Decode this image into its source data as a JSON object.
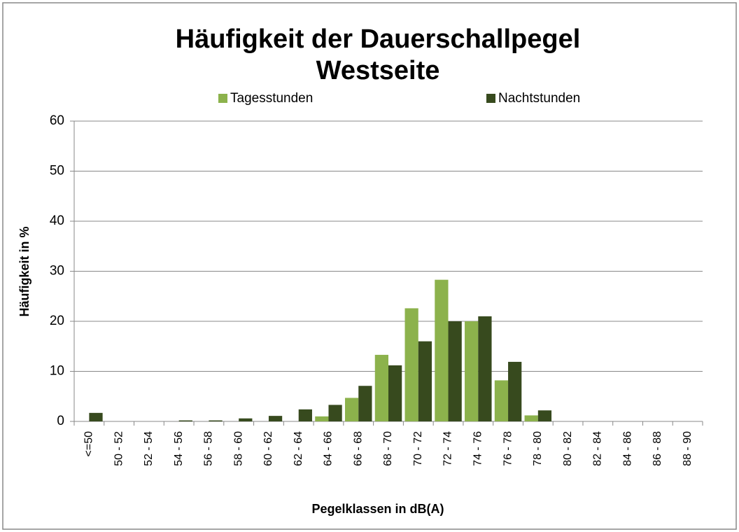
{
  "chart_data": {
    "type": "bar",
    "title": "Häufigkeit der Dauerschallpegel",
    "subtitle": "Westseite",
    "x_label": "Pegelklassen in dB(A)",
    "y_label": "Häufigkeit in %",
    "categories": [
      "<=50",
      "50 - 52",
      "52 - 54",
      "54 - 56",
      "56 - 58",
      "58 - 60",
      "60 - 62",
      "62 - 64",
      "64 - 66",
      "66 - 68",
      "68 - 70",
      "70 - 72",
      "72 - 74",
      "74 - 76",
      "76 - 78",
      "78 - 80",
      "80 - 82",
      "82 - 84",
      "84 - 86",
      "86 - 88",
      "88 - 90"
    ],
    "series": [
      {
        "name": "Tagesstunden",
        "color": "#8cb24c",
        "values": [
          0,
          0,
          0,
          0,
          0,
          0,
          0,
          0,
          1,
          4.7,
          13.3,
          22.6,
          28.3,
          20,
          8.2,
          1.2,
          0,
          0,
          0,
          0,
          0
        ]
      },
      {
        "name": "Nachtstunden",
        "color": "#374a1e",
        "values": [
          1.7,
          0,
          0,
          0.2,
          0.2,
          0.6,
          1.1,
          2.4,
          3.3,
          7.1,
          11.2,
          16,
          20,
          21,
          11.9,
          2.2,
          0,
          0,
          0,
          0,
          0
        ]
      }
    ],
    "ylim": [
      0,
      60
    ],
    "yticks": [
      0,
      10,
      20,
      30,
      40,
      50,
      60
    ],
    "grid": true
  }
}
